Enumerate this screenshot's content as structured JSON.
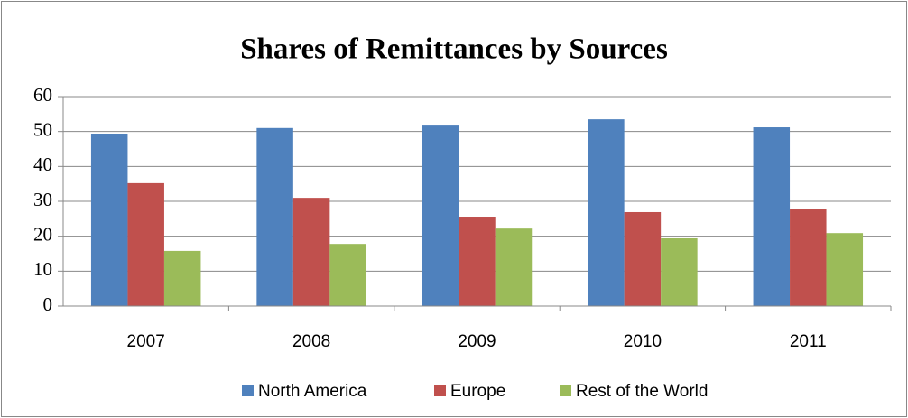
{
  "chart_data": {
    "type": "bar",
    "title": "Shares of Remittances by Sources",
    "categories": [
      "2007",
      "2008",
      "2009",
      "2010",
      "2011"
    ],
    "series": [
      {
        "name": "North America",
        "color": "#4f81bd",
        "values": [
          49.4,
          51,
          51.7,
          53.5,
          51.2
        ]
      },
      {
        "name": "Europe",
        "color": "#c0504d",
        "values": [
          35.2,
          31,
          25.6,
          26.9,
          27.7
        ]
      },
      {
        "name": "Rest of the World",
        "color": "#9bbb59",
        "values": [
          15.8,
          17.8,
          22.2,
          19.4,
          20.9
        ]
      }
    ],
    "ylim": [
      0,
      60
    ],
    "yticks": [
      0,
      10,
      20,
      30,
      40,
      50,
      60
    ],
    "grid": true,
    "legend": "bottom"
  }
}
